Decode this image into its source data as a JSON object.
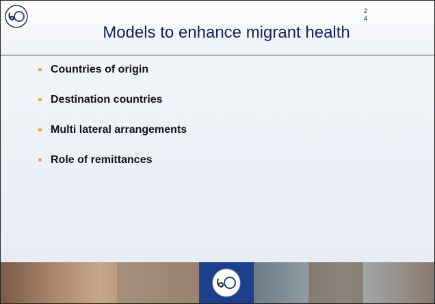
{
  "header": {
    "title": "Models to enhance migrant health",
    "page_number": [
      "2",
      "4"
    ]
  },
  "bullets": [
    "Countries of origin",
    "Destination countries",
    "Multi lateral arrangements",
    "Role of remittances"
  ]
}
